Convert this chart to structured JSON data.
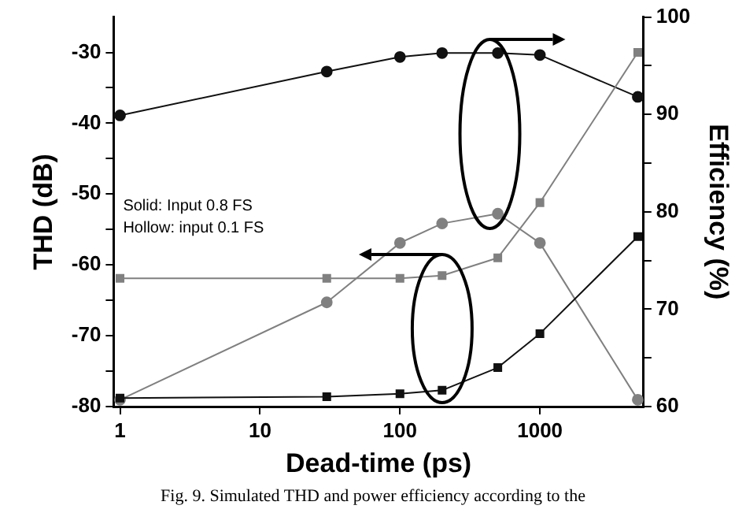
{
  "chart_data": {
    "type": "line",
    "xlabel": "Dead-time (ps)",
    "ylabel": "THD (dB)",
    "y2label": "Efficiency (%)",
    "log": "x",
    "grid": false,
    "legend": false,
    "xlim": [
      0.9,
      5500
    ],
    "xticks": [
      1,
      10,
      100,
      1000
    ],
    "ylim": [
      -80,
      -25
    ],
    "yticks": [
      -80,
      {
        "value": -75,
        "label": null
      },
      -70,
      {
        "value": -65,
        "label": null
      },
      -60,
      {
        "value": -55,
        "label": null
      },
      -50,
      {
        "value": -45,
        "label": null
      },
      -40,
      {
        "value": -35,
        "label": null
      },
      -30
    ],
    "y2lim": [
      60,
      100
    ],
    "y2ticks": [
      60,
      {
        "value": 65,
        "label": null
      },
      70,
      {
        "value": 75,
        "label": null
      },
      80,
      {
        "value": 85,
        "label": null
      },
      90,
      {
        "value": 95,
        "label": null
      },
      100
    ],
    "series": [
      {
        "color": "#111111",
        "axis": "y2",
        "marker": "circle",
        "x": [
          1,
          30,
          100,
          200,
          500,
          1000,
          5000
        ],
        "values": [
          89.9,
          94.4,
          95.9,
          96.3,
          96.3,
          96.1,
          91.8
        ]
      },
      {
        "color": "#808080",
        "axis": "y2",
        "marker": "circle",
        "x": [
          1,
          30,
          100,
          200,
          500,
          1000,
          5000
        ],
        "values": [
          60.7,
          70.7,
          76.8,
          78.8,
          79.8,
          76.8,
          60.7
        ]
      },
      {
        "color": "#808080",
        "marker": "square",
        "x": [
          1,
          30,
          100,
          200,
          500,
          1000,
          5000
        ],
        "values": [
          -61.9,
          -61.9,
          -61.9,
          -61.5,
          -59,
          -51.2,
          -30
        ]
      },
      {
        "color": "#111111",
        "marker": "square",
        "x": [
          1,
          30,
          100,
          200,
          500,
          1000,
          5000
        ],
        "values": [
          -78.8,
          -78.6,
          -78.2,
          -77.7,
          -74.5,
          -69.7,
          -56
        ]
      }
    ],
    "annotations": [
      "Solid: Input 0.8 FS",
      "Hollow: input 0.1 FS",
      "Fig. 9. Simulated THD and power efficiency according to the"
    ]
  }
}
